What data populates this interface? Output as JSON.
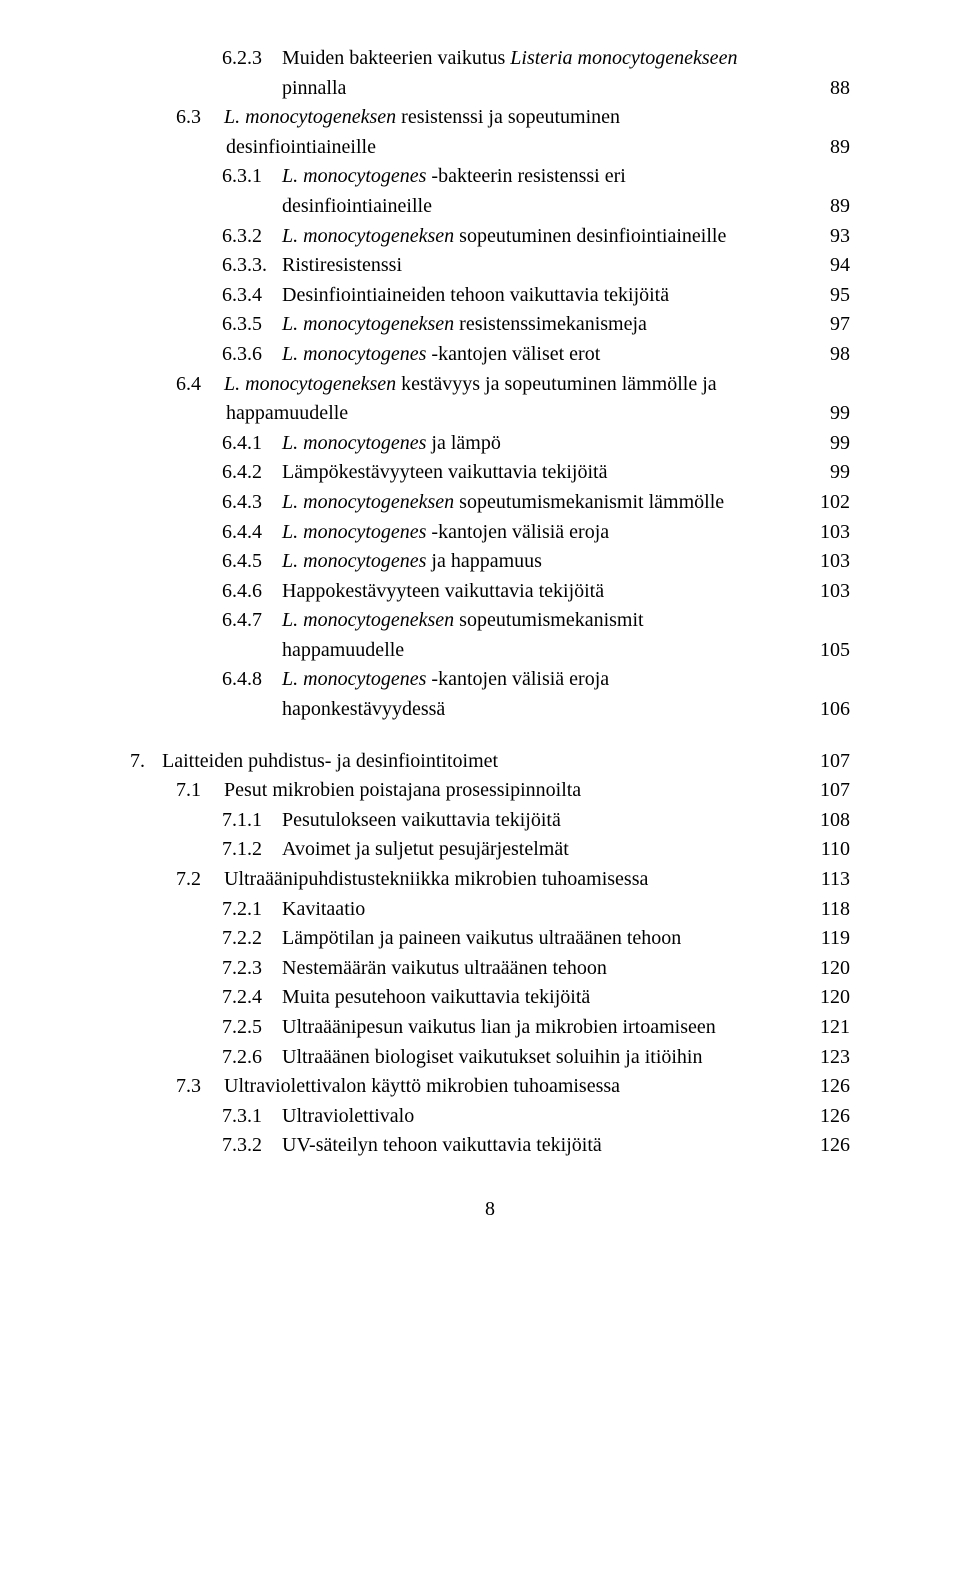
{
  "entries": [
    {
      "indent": "ind-3",
      "num": "6.2.3",
      "numClass": "num-3",
      "runs": [
        {
          "t": "Muiden bakteerien vaikutus ",
          "i": false
        },
        {
          "t": "Listeria monocytogenekseen",
          "i": true
        }
      ],
      "page": ""
    },
    {
      "indent": "ind-cont-3",
      "num": "",
      "numClass": "",
      "runs": [
        {
          "t": "pinnalla",
          "i": false
        }
      ],
      "page": "88"
    },
    {
      "indent": "ind-2b",
      "num": "6.3",
      "numClass": "num-2",
      "runs": [
        {
          "t": "L. monocytogeneksen",
          "i": true
        },
        {
          "t": " resistenssi ja sopeutuminen",
          "i": false
        }
      ],
      "page": ""
    },
    {
      "indent": "ind-cont-2",
      "num": "",
      "numClass": "",
      "runs": [
        {
          "t": "desinfiointiaineille",
          "i": false
        }
      ],
      "page": "89"
    },
    {
      "indent": "ind-3",
      "num": "6.3.1",
      "numClass": "num-3",
      "runs": [
        {
          "t": "L. monocytogenes",
          "i": true
        },
        {
          "t": " -bakteerin resistenssi eri",
          "i": false
        }
      ],
      "page": ""
    },
    {
      "indent": "ind-cont-3",
      "num": "",
      "numClass": "",
      "runs": [
        {
          "t": "desinfiointiaineille",
          "i": false
        }
      ],
      "page": "89"
    },
    {
      "indent": "ind-3",
      "num": "6.3.2",
      "numClass": "num-3",
      "runs": [
        {
          "t": "L. monocytogeneksen",
          "i": true
        },
        {
          "t": " sopeutuminen desinfiointiaineille",
          "i": false
        }
      ],
      "page": "93"
    },
    {
      "indent": "ind-3",
      "num": "6.3.3.",
      "numClass": "num-3",
      "runs": [
        {
          "t": "Ristiresistenssi",
          "i": false
        }
      ],
      "page": "94"
    },
    {
      "indent": "ind-3",
      "num": "6.3.4",
      "numClass": "num-3",
      "runs": [
        {
          "t": "Desinfiointiaineiden tehoon vaikuttavia tekijöitä",
          "i": false
        }
      ],
      "page": "95"
    },
    {
      "indent": "ind-3",
      "num": "6.3.5",
      "numClass": "num-3",
      "runs": [
        {
          "t": "L. monocytogeneksen",
          "i": true
        },
        {
          "t": " resistenssimekanismeja",
          "i": false
        }
      ],
      "page": "97"
    },
    {
      "indent": "ind-3",
      "num": "6.3.6",
      "numClass": "num-3",
      "runs": [
        {
          "t": "L. monocytogenes",
          "i": true
        },
        {
          "t": " -kantojen väliset erot",
          "i": false
        }
      ],
      "page": "98"
    },
    {
      "indent": "ind-2b",
      "num": "6.4",
      "numClass": "num-2",
      "runs": [
        {
          "t": "L. monocytogeneksen",
          "i": true
        },
        {
          "t": " kestävyys ja sopeutuminen lämmölle ja",
          "i": false
        }
      ],
      "page": ""
    },
    {
      "indent": "ind-cont-2",
      "num": "",
      "numClass": "",
      "runs": [
        {
          "t": "happamuudelle",
          "i": false
        }
      ],
      "page": "99"
    },
    {
      "indent": "ind-3",
      "num": "6.4.1",
      "numClass": "num-3",
      "runs": [
        {
          "t": "L. monocytogenes",
          "i": true
        },
        {
          "t": " ja lämpö",
          "i": false
        }
      ],
      "page": "99"
    },
    {
      "indent": "ind-3",
      "num": "6.4.2",
      "numClass": "num-3",
      "runs": [
        {
          "t": "Lämpökestävyyteen vaikuttavia tekijöitä",
          "i": false
        }
      ],
      "page": "99"
    },
    {
      "indent": "ind-3",
      "num": "6.4.3",
      "numClass": "num-3",
      "runs": [
        {
          "t": "L. monocytogeneksen",
          "i": true
        },
        {
          "t": " sopeutumismekanismit lämmölle",
          "i": false
        }
      ],
      "page": "102"
    },
    {
      "indent": "ind-3",
      "num": "6.4.4",
      "numClass": "num-3",
      "runs": [
        {
          "t": "L. monocytogenes",
          "i": true
        },
        {
          "t": " -kantojen välisiä eroja",
          "i": false
        }
      ],
      "page": "103"
    },
    {
      "indent": "ind-3",
      "num": "6.4.5",
      "numClass": "num-3",
      "runs": [
        {
          "t": "L. monocytogenes",
          "i": true
        },
        {
          "t": " ja happamuus",
          "i": false
        }
      ],
      "page": "103"
    },
    {
      "indent": "ind-3",
      "num": "6.4.6",
      "numClass": "num-3",
      "runs": [
        {
          "t": "Happokestävyyteen vaikuttavia tekijöitä",
          "i": false
        }
      ],
      "page": "103"
    },
    {
      "indent": "ind-3",
      "num": "6.4.7",
      "numClass": "num-3",
      "runs": [
        {
          "t": "L. monocytogeneksen",
          "i": true
        },
        {
          "t": " sopeutumismekanismit",
          "i": false
        }
      ],
      "page": ""
    },
    {
      "indent": "ind-cont-3",
      "num": "",
      "numClass": "",
      "runs": [
        {
          "t": "happamuudelle",
          "i": false
        }
      ],
      "page": "105"
    },
    {
      "indent": "ind-3",
      "num": "6.4.8",
      "numClass": "num-3",
      "runs": [
        {
          "t": "L. monocytogenes",
          "i": true
        },
        {
          "t": " -kantojen välisiä eroja",
          "i": false
        }
      ],
      "page": ""
    },
    {
      "indent": "ind-cont-3",
      "num": "",
      "numClass": "",
      "runs": [
        {
          "t": "haponkestävyydessä",
          "i": false
        }
      ],
      "page": "106"
    },
    {
      "gap": true
    },
    {
      "indent": "ind-1",
      "num": "7.",
      "numClass": "num-1",
      "runs": [
        {
          "t": "Laitteiden puhdistus- ja desinfiointitoimet",
          "i": false
        }
      ],
      "page": "107"
    },
    {
      "indent": "ind-2b",
      "num": "7.1",
      "numClass": "num-2",
      "runs": [
        {
          "t": "Pesut mikrobien poistajana prosessipinnoilta",
          "i": false
        }
      ],
      "page": "107"
    },
    {
      "indent": "ind-3",
      "num": "7.1.1",
      "numClass": "num-3",
      "runs": [
        {
          "t": "Pesutulokseen vaikuttavia tekijöitä",
          "i": false
        }
      ],
      "page": "108"
    },
    {
      "indent": "ind-3",
      "num": "7.1.2",
      "numClass": "num-3",
      "runs": [
        {
          "t": "Avoimet ja suljetut pesujärjestelmät",
          "i": false
        }
      ],
      "page": "110"
    },
    {
      "indent": "ind-2b",
      "num": "7.2",
      "numClass": "num-2",
      "runs": [
        {
          "t": "Ultraäänipuhdistustekniikka mikrobien tuhoamisessa",
          "i": false
        }
      ],
      "page": "113"
    },
    {
      "indent": "ind-3",
      "num": "7.2.1",
      "numClass": "num-3",
      "runs": [
        {
          "t": "Kavitaatio",
          "i": false
        }
      ],
      "page": "118"
    },
    {
      "indent": "ind-3",
      "num": "7.2.2",
      "numClass": "num-3",
      "runs": [
        {
          "t": "Lämpötilan ja paineen vaikutus ultraäänen tehoon",
          "i": false
        }
      ],
      "page": "119"
    },
    {
      "indent": "ind-3",
      "num": "7.2.3",
      "numClass": "num-3",
      "runs": [
        {
          "t": "Nestemäärän vaikutus ultraäänen tehoon",
          "i": false
        }
      ],
      "page": "120"
    },
    {
      "indent": "ind-3",
      "num": "7.2.4",
      "numClass": "num-3",
      "runs": [
        {
          "t": "Muita pesutehoon vaikuttavia tekijöitä",
          "i": false
        }
      ],
      "page": "120"
    },
    {
      "indent": "ind-3",
      "num": "7.2.5",
      "numClass": "num-3",
      "runs": [
        {
          "t": "Ultraäänipesun vaikutus lian ja mikrobien irtoamiseen",
          "i": false
        }
      ],
      "page": "121"
    },
    {
      "indent": "ind-3",
      "num": "7.2.6",
      "numClass": "num-3",
      "runs": [
        {
          "t": "Ultraäänen biologiset vaikutukset soluihin ja itiöihin",
          "i": false
        }
      ],
      "page": "123"
    },
    {
      "indent": "ind-2b",
      "num": "7.3",
      "numClass": "num-2",
      "runs": [
        {
          "t": "Ultraviolettivalon käyttö mikrobien tuhoamisessa",
          "i": false
        }
      ],
      "page": "126"
    },
    {
      "indent": "ind-3",
      "num": "7.3.1",
      "numClass": "num-3",
      "runs": [
        {
          "t": "Ultraviolettivalo",
          "i": false
        }
      ],
      "page": "126"
    },
    {
      "indent": "ind-3",
      "num": "7.3.2",
      "numClass": "num-3",
      "runs": [
        {
          "t": "UV-säteilyn tehoon vaikuttavia tekijöitä",
          "i": false
        }
      ],
      "page": "126"
    }
  ],
  "footer": "8"
}
